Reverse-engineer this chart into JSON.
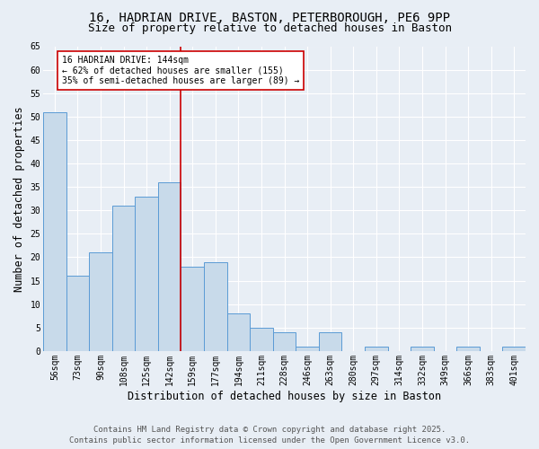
{
  "title1": "16, HADRIAN DRIVE, BASTON, PETERBOROUGH, PE6 9PP",
  "title2": "Size of property relative to detached houses in Baston",
  "xlabel": "Distribution of detached houses by size in Baston",
  "ylabel": "Number of detached properties",
  "categories": [
    "56sqm",
    "73sqm",
    "90sqm",
    "108sqm",
    "125sqm",
    "142sqm",
    "159sqm",
    "177sqm",
    "194sqm",
    "211sqm",
    "228sqm",
    "246sqm",
    "263sqm",
    "280sqm",
    "297sqm",
    "314sqm",
    "332sqm",
    "349sqm",
    "366sqm",
    "383sqm",
    "401sqm"
  ],
  "values": [
    51,
    16,
    21,
    31,
    33,
    36,
    18,
    19,
    8,
    5,
    4,
    1,
    4,
    0,
    1,
    0,
    1,
    0,
    1,
    0,
    1
  ],
  "bar_color": "#c8daea",
  "bar_edge_color": "#5b9bd5",
  "vline_color": "#cc0000",
  "annotation_text": "16 HADRIAN DRIVE: 144sqm\n← 62% of detached houses are smaller (155)\n35% of semi-detached houses are larger (89) →",
  "annotation_box_color": "#ffffff",
  "annotation_box_edge_color": "#cc0000",
  "ylim": [
    0,
    65
  ],
  "yticks": [
    0,
    5,
    10,
    15,
    20,
    25,
    30,
    35,
    40,
    45,
    50,
    55,
    60,
    65
  ],
  "footer1": "Contains HM Land Registry data © Crown copyright and database right 2025.",
  "footer2": "Contains public sector information licensed under the Open Government Licence v3.0.",
  "bg_color": "#e8eef5",
  "plot_bg_color": "#e8eef5",
  "title_fontsize": 10,
  "subtitle_fontsize": 9,
  "tick_fontsize": 7,
  "label_fontsize": 8.5,
  "footer_fontsize": 6.5,
  "vline_index": 5
}
